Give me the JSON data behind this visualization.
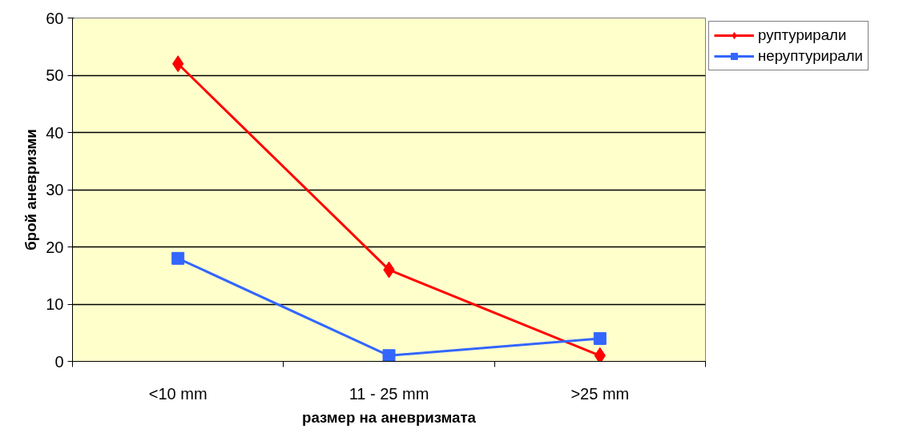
{
  "chart_data": {
    "type": "line",
    "xlabel": "размер на аневризмата",
    "ylabel": "брой аневризми",
    "categories": [
      "<10 mm",
      "11 - 25 mm",
      ">25 mm"
    ],
    "series": [
      {
        "name": "руптурирали",
        "color": "#ff0000",
        "marker": "diamond",
        "values": [
          52,
          16,
          1
        ]
      },
      {
        "name": "неруптурирали",
        "color": "#3366ff",
        "marker": "square",
        "values": [
          18,
          1,
          4
        ]
      }
    ],
    "ylim": [
      0,
      60
    ],
    "yticks": [
      0,
      10,
      20,
      30,
      40,
      50,
      60
    ],
    "grid": "y",
    "legend": "right"
  }
}
